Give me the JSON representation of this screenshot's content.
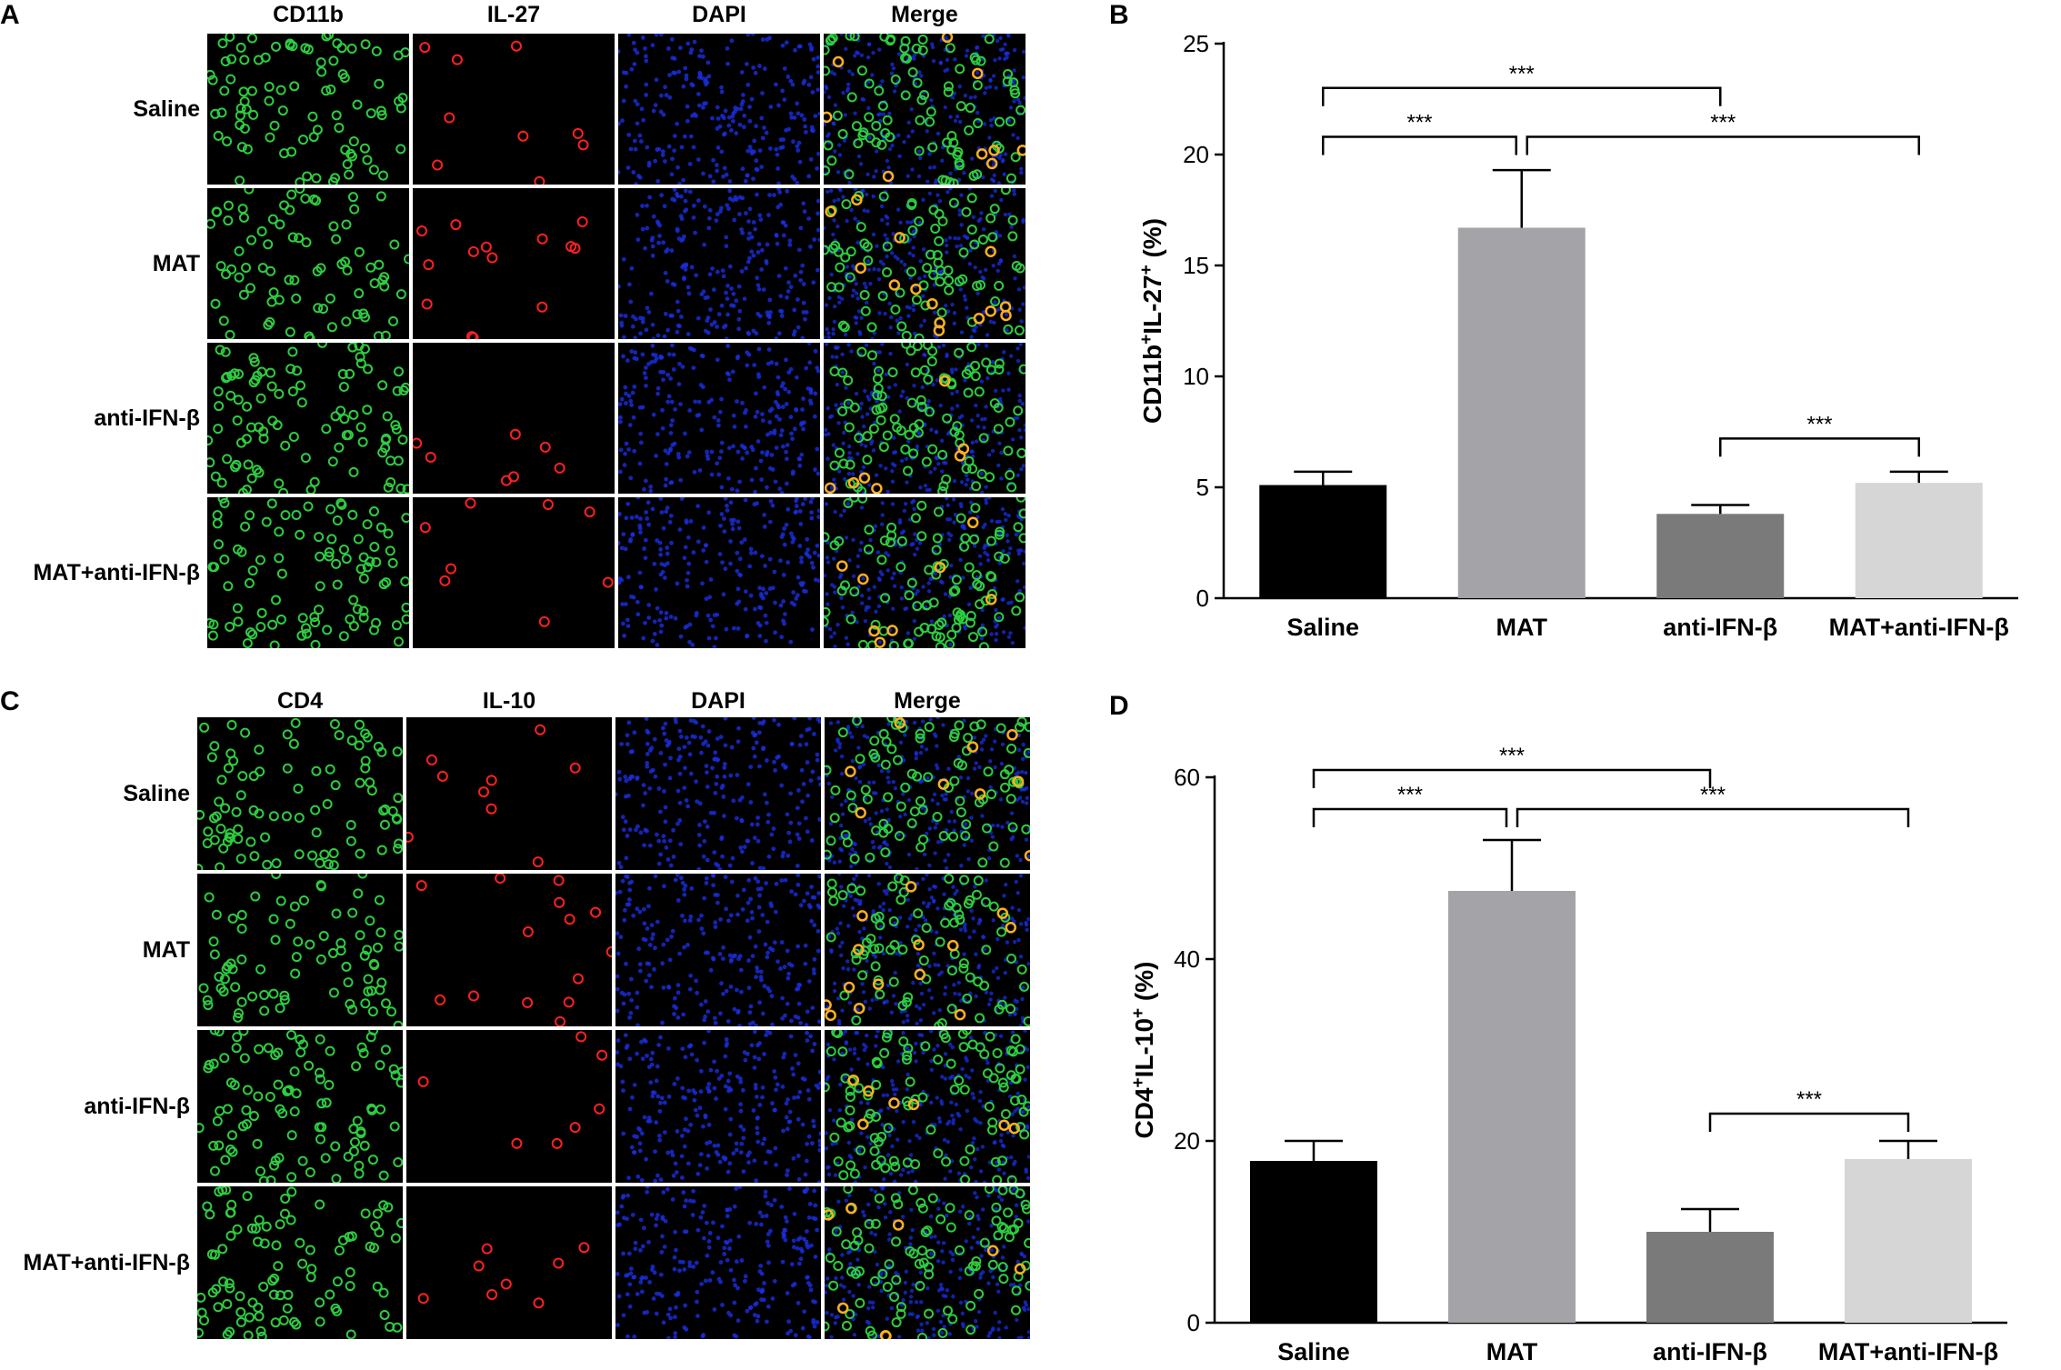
{
  "panels": {
    "A": {
      "letter": "A",
      "columns": [
        "CD11b",
        "IL-27",
        "DAPI",
        "Merge"
      ],
      "rows": [
        "Saline",
        "MAT",
        "anti-IFN-β",
        "MAT+anti-IFN-β"
      ]
    },
    "B": {
      "letter": "B"
    },
    "C": {
      "letter": "C",
      "columns": [
        "CD4",
        "IL-10",
        "DAPI",
        "Merge"
      ],
      "rows": [
        "Saline",
        "MAT",
        "anti-IFN-β",
        "MAT+anti-IFN-β"
      ]
    },
    "D": {
      "letter": "D"
    }
  },
  "colors": {
    "green_channel": "#2ecc40",
    "red_channel": "#ff2020",
    "blue_channel": "#1a2ee0",
    "merge_yellow": "#ffb020"
  },
  "chart_data": [
    {
      "type": "bar",
      "panel": "B",
      "categories": [
        "Saline",
        "MAT",
        "anti-IFN-β",
        "MAT+anti-IFN-β"
      ],
      "values": [
        5.1,
        16.7,
        3.8,
        5.2
      ],
      "errors": [
        0.6,
        2.6,
        0.4,
        0.5
      ],
      "bar_colors": [
        "#000000",
        "#a3a3a8",
        "#7a7a7a",
        "#d6d6d6"
      ],
      "ylabel": {
        "base1": "CD11b",
        "sup1": "+",
        "base2": "IL-27",
        "sup2": "+",
        "suffix": " (%)"
      },
      "ylim": [
        0,
        25
      ],
      "yticks": [
        0,
        5,
        10,
        15,
        20,
        25
      ],
      "significance": [
        {
          "from": 0,
          "to": 2,
          "label": "***",
          "level": 23
        },
        {
          "from": 0,
          "to": 1,
          "label": "***",
          "level": 20.8
        },
        {
          "from": 1,
          "to": 3,
          "label": "***",
          "level": 20.8
        },
        {
          "from": 2,
          "to": 3,
          "label": "***",
          "level": 7.2
        }
      ]
    },
    {
      "type": "bar",
      "panel": "D",
      "categories": [
        "Saline",
        "MAT",
        "anti-IFN-β",
        "MAT+anti-IFN-β"
      ],
      "values": [
        17.8,
        47.5,
        10.0,
        18.0
      ],
      "errors": [
        2.2,
        5.6,
        2.5,
        2.0
      ],
      "bar_colors": [
        "#000000",
        "#a3a3a8",
        "#7a7a7a",
        "#d6d6d6"
      ],
      "ylabel": {
        "base1": "CD4",
        "sup1": "+",
        "base2": "IL-10",
        "sup2": "+",
        "suffix": " (%)"
      },
      "ylim": [
        0,
        60
      ],
      "yticks": [
        0,
        20,
        40,
        60
      ],
      "significance": [
        {
          "from": 0,
          "to": 2,
          "label": "***",
          "level": 60.8
        },
        {
          "from": 0,
          "to": 1,
          "label": "***",
          "level": 56.5
        },
        {
          "from": 1,
          "to": 3,
          "label": "***",
          "level": 56.5
        },
        {
          "from": 2,
          "to": 3,
          "label": "***",
          "level": 23.0
        }
      ]
    }
  ]
}
